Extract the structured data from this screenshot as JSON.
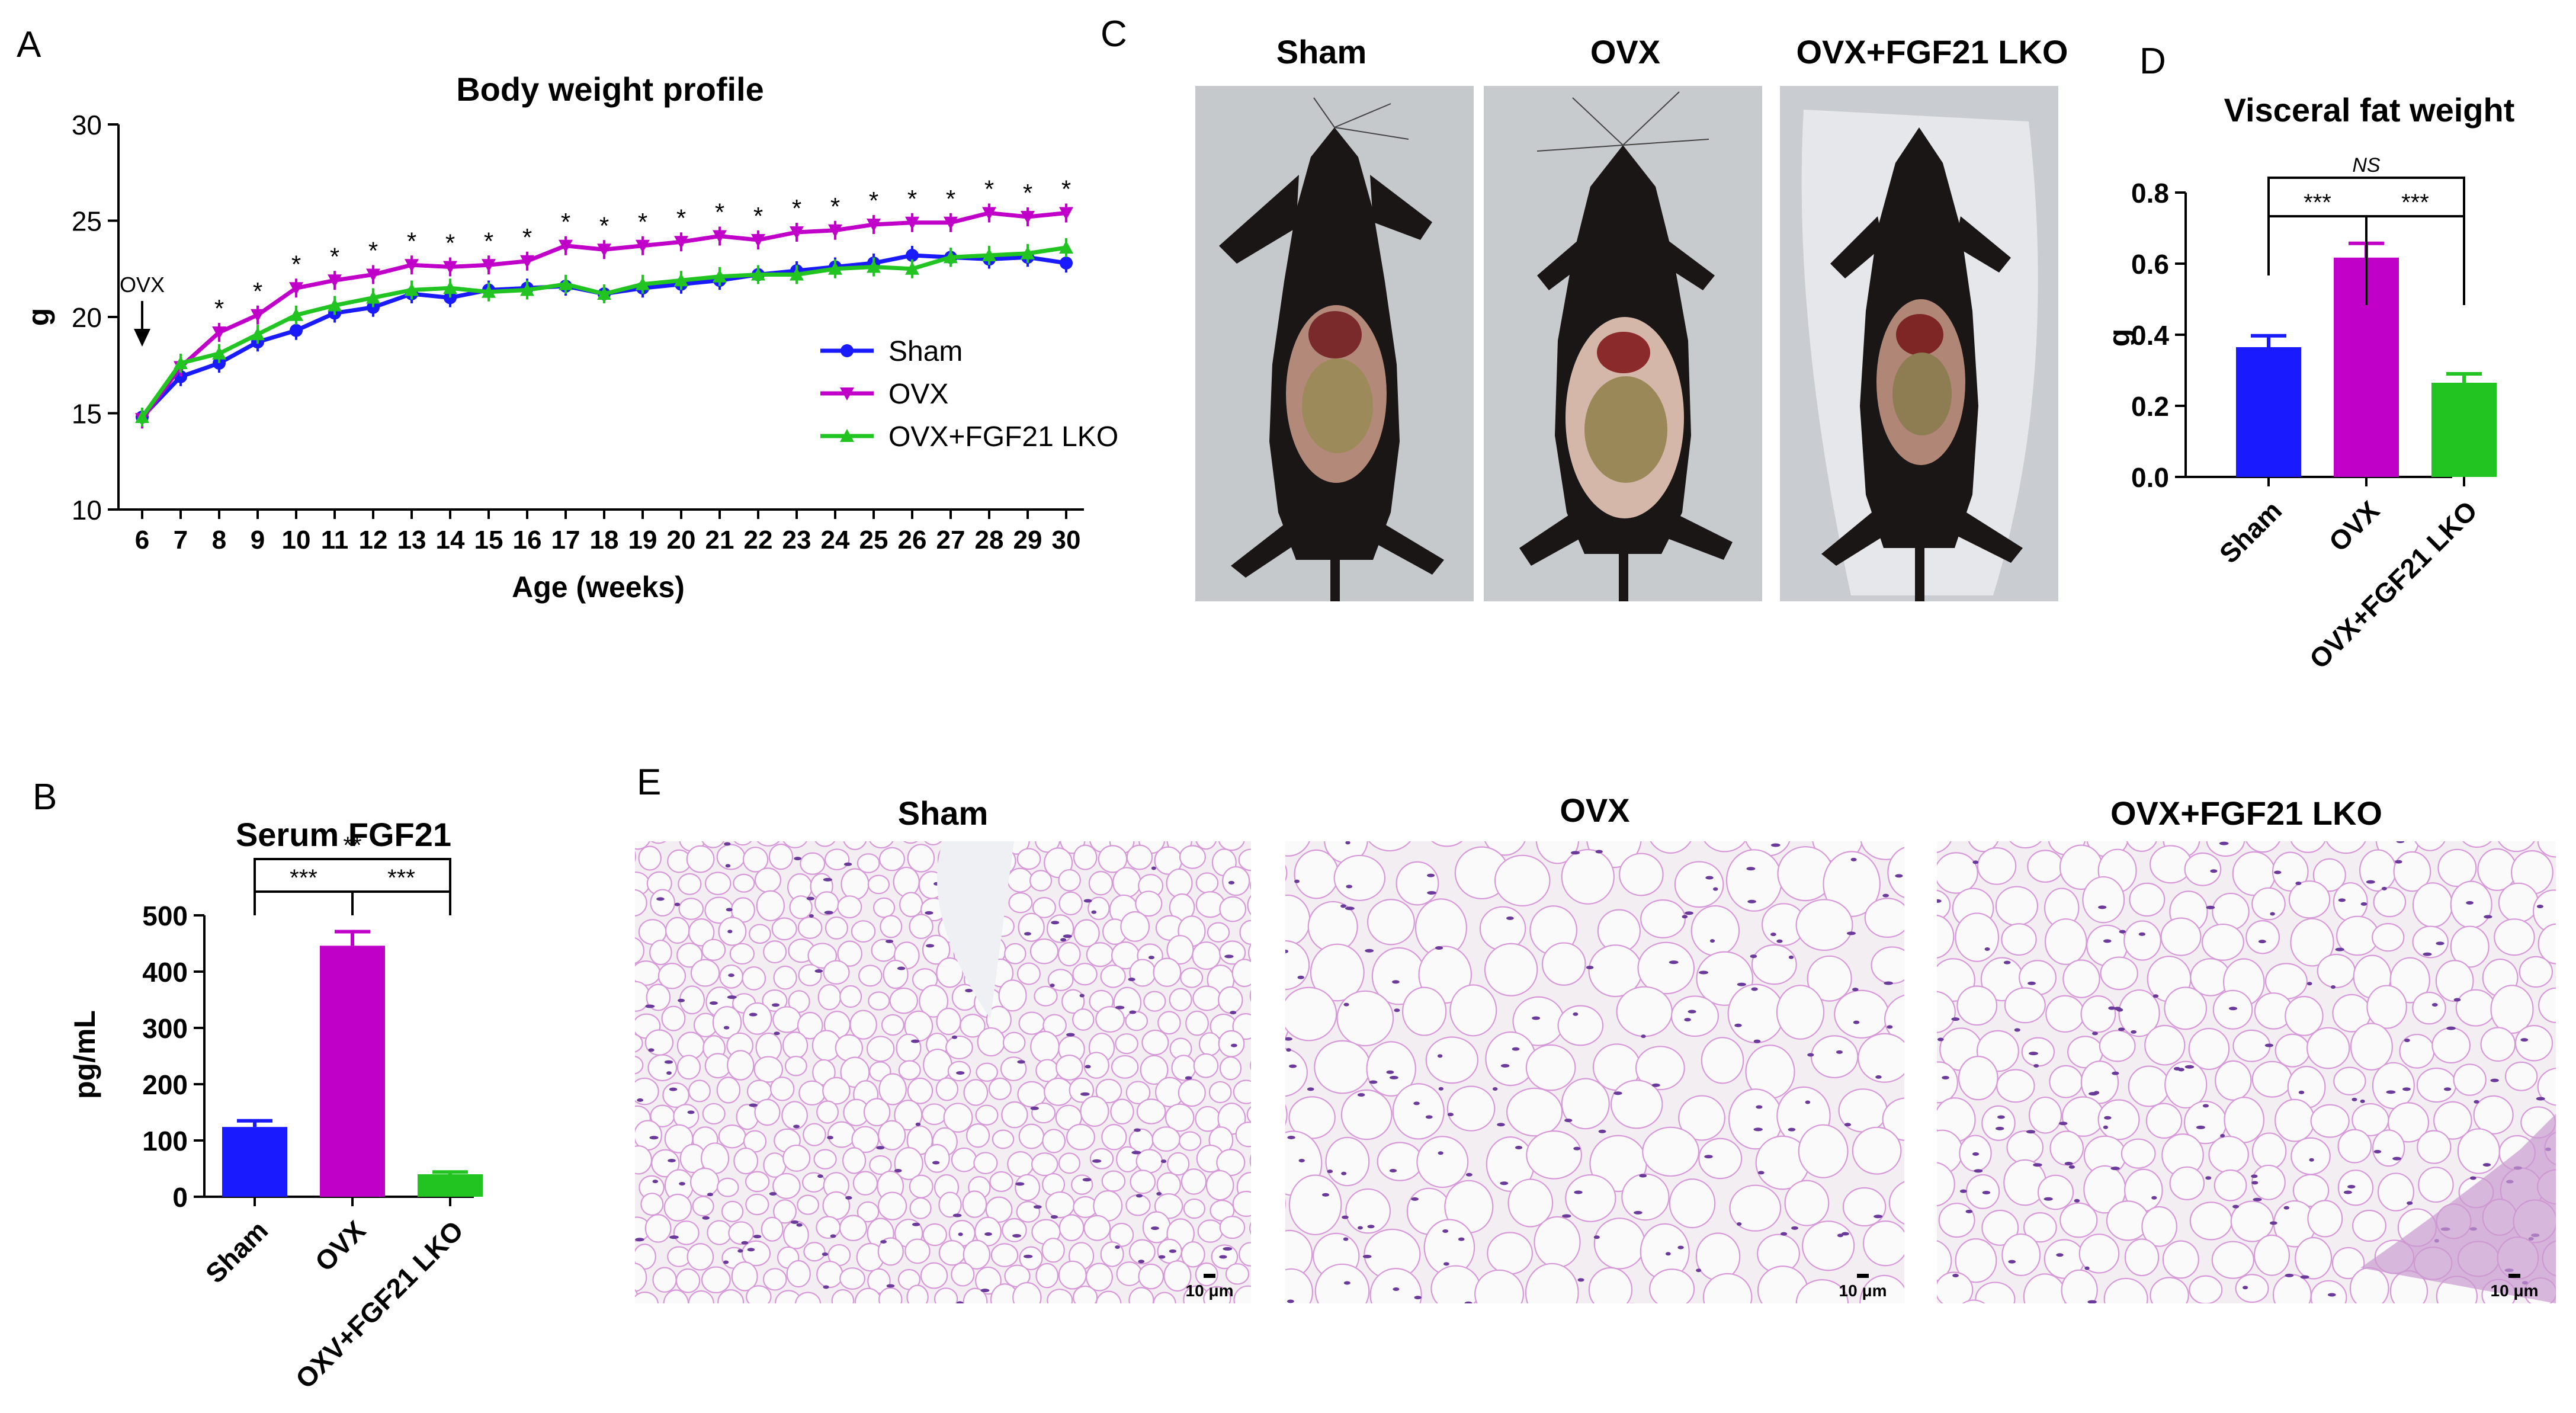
{
  "panels": {
    "A": "A",
    "B": "B",
    "C": "C",
    "D": "D",
    "E": "E"
  },
  "colors": {
    "sham": "#1a1aff",
    "ovx": "#c000c8",
    "lko": "#22c422",
    "photo_bg": "#c9cccf",
    "mouse": "#1b1616",
    "tissue_bg": "#f3eef2",
    "tissue_line": "#d79ad8",
    "nuclei": "#6a3a9a"
  },
  "chart_data": [
    {
      "panel": "A",
      "type": "line",
      "title": "Body weight profile",
      "xlabel": "Age (weeks)",
      "ylabel": "g",
      "ylim": [
        10,
        30
      ],
      "yticks": [
        10,
        15,
        20,
        25,
        30
      ],
      "x": [
        6,
        7,
        8,
        9,
        10,
        11,
        12,
        13,
        14,
        15,
        16,
        17,
        18,
        19,
        20,
        21,
        22,
        23,
        24,
        25,
        26,
        27,
        28,
        29,
        30
      ],
      "legend": "right-middle",
      "annotation": {
        "text": "OVX",
        "arrow_at_x": 6
      },
      "series": [
        {
          "name": "Sham",
          "marker": "circle",
          "values": [
            14.8,
            16.9,
            17.6,
            18.7,
            19.3,
            20.2,
            20.5,
            21.2,
            21.0,
            21.4,
            21.5,
            21.6,
            21.2,
            21.5,
            21.7,
            21.9,
            22.2,
            22.4,
            22.6,
            22.8,
            23.2,
            23.1,
            23.0,
            23.1,
            22.8
          ]
        },
        {
          "name": "OVX",
          "marker": "triangle-down",
          "values": [
            14.7,
            17.4,
            19.2,
            20.1,
            21.5,
            21.9,
            22.2,
            22.7,
            22.6,
            22.7,
            22.9,
            23.7,
            23.5,
            23.7,
            23.9,
            24.2,
            24.0,
            24.4,
            24.5,
            24.8,
            24.9,
            24.9,
            25.4,
            25.2,
            25.4
          ]
        },
        {
          "name": "OVX+FGF21 LKO",
          "marker": "triangle-up",
          "values": [
            14.8,
            17.6,
            18.1,
            19.1,
            20.1,
            20.6,
            21.0,
            21.4,
            21.5,
            21.3,
            21.4,
            21.7,
            21.2,
            21.7,
            21.9,
            22.1,
            22.2,
            22.2,
            22.5,
            22.6,
            22.5,
            23.1,
            23.2,
            23.3,
            23.6
          ]
        }
      ],
      "significance": {
        "label": "*",
        "weeks": [
          8,
          9,
          10,
          11,
          12,
          13,
          14,
          15,
          16,
          17,
          18,
          19,
          20,
          21,
          22,
          23,
          24,
          25,
          26,
          27,
          28,
          29,
          30
        ]
      }
    },
    {
      "panel": "B",
      "type": "bar",
      "title": "Serum FGF21",
      "ylabel": "pg/mL",
      "ylim": [
        0,
        500
      ],
      "yticks": [
        0,
        100,
        200,
        300,
        400,
        500
      ],
      "categories": [
        "Sham",
        "OVX",
        "OXV+FGF21 LKO"
      ],
      "values": [
        124,
        446,
        40
      ],
      "errors": [
        11,
        25,
        4
      ],
      "significance": [
        {
          "pair": [
            0,
            1
          ],
          "label": "***"
        },
        {
          "pair": [
            1,
            2
          ],
          "label": "***"
        },
        {
          "pair": [
            0,
            2
          ],
          "label": "**"
        }
      ]
    },
    {
      "panel": "D",
      "type": "bar",
      "title": "Visceral fat weight",
      "ylabel": "g",
      "ylim": [
        0,
        0.8
      ],
      "yticks": [
        "0.0",
        "0.2",
        "0.4",
        "0.6",
        "0.8"
      ],
      "categories": [
        "Sham",
        "OVX",
        "OVX+FGF21 LKO"
      ],
      "values": [
        0.365,
        0.617,
        0.265
      ],
      "errors": [
        0.032,
        0.04,
        0.025
      ],
      "significance": [
        {
          "pair": [
            0,
            1
          ],
          "label": "***"
        },
        {
          "pair": [
            1,
            2
          ],
          "label": "***"
        },
        {
          "pair": [
            0,
            2
          ],
          "label": "NS"
        }
      ]
    }
  ],
  "photos": {
    "labels": [
      "Sham",
      "OVX",
      "OVX+FGF21 LKO"
    ]
  },
  "histology": {
    "labels": [
      "Sham",
      "OVX",
      "OVX+FGF21 LKO"
    ],
    "scale_bar": "10 μm"
  }
}
